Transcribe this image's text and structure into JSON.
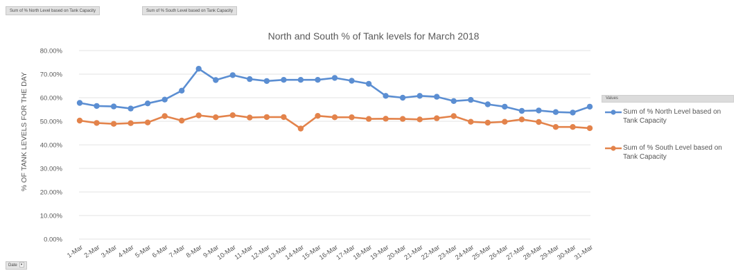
{
  "field_buttons": [
    "Sum of % North Level based on Tank Capacity",
    "Sum of % South Level based on Tank Capacity"
  ],
  "values_header": "Values",
  "date_filter": {
    "label": "Date",
    "arrow": "▾",
    "arrow_icon": "dropdown-arrow-icon"
  },
  "colors": {
    "north": "#5b8ed2",
    "south": "#e3834b"
  },
  "chart_data": {
    "type": "line",
    "title": "North and South % of Tank levels for March 2018",
    "xlabel": "",
    "ylabel": "% OF TANK LEVELS FOR THE DAY",
    "ylim": [
      0,
      80
    ],
    "ytick_values": [
      0,
      10,
      20,
      30,
      40,
      50,
      60,
      70,
      80
    ],
    "yticks": [
      "0.00%",
      "10.00%",
      "20.00%",
      "30.00%",
      "40.00%",
      "50.00%",
      "60.00%",
      "70.00%",
      "80.00%"
    ],
    "grid": true,
    "legend_position": "right",
    "categories": [
      "1-Mar",
      "2-Mar",
      "3-Mar",
      "4-Mar",
      "5-Mar",
      "6-Mar",
      "7-Mar",
      "8-Mar",
      "9-Mar",
      "10-Mar",
      "11-Mar",
      "12-Mar",
      "13-Mar",
      "14-Mar",
      "15-Mar",
      "16-Mar",
      "17-Mar",
      "18-Mar",
      "19-Mar",
      "20-Mar",
      "21-Mar",
      "22-Mar",
      "23-Mar",
      "24-Mar",
      "25-Mar",
      "26-Mar",
      "27-Mar",
      "28-Mar",
      "29-Mar",
      "30-Mar",
      "31-Mar"
    ],
    "series": [
      {
        "name": "Sum of % North Level based on Tank Capacity",
        "values": [
          57.8,
          56.5,
          56.3,
          55.4,
          57.6,
          59.2,
          63.0,
          72.3,
          67.5,
          69.6,
          67.9,
          67.1,
          67.6,
          67.6,
          67.6,
          68.4,
          67.2,
          65.9,
          60.8,
          60.0,
          60.8,
          60.4,
          58.6,
          59.1,
          57.2,
          56.2,
          54.4,
          54.6,
          53.9,
          53.7,
          56.2
        ]
      },
      {
        "name": "Sum of % South Level based on Tank Capacity",
        "values": [
          50.3,
          49.3,
          48.9,
          49.2,
          49.5,
          52.2,
          50.3,
          52.5,
          51.7,
          52.6,
          51.6,
          51.8,
          51.8,
          46.9,
          52.3,
          51.7,
          51.7,
          51.0,
          51.1,
          51.0,
          50.8,
          51.3,
          52.2,
          49.8,
          49.4,
          49.8,
          50.8,
          49.7,
          47.6,
          47.6,
          47.1
        ]
      }
    ]
  }
}
